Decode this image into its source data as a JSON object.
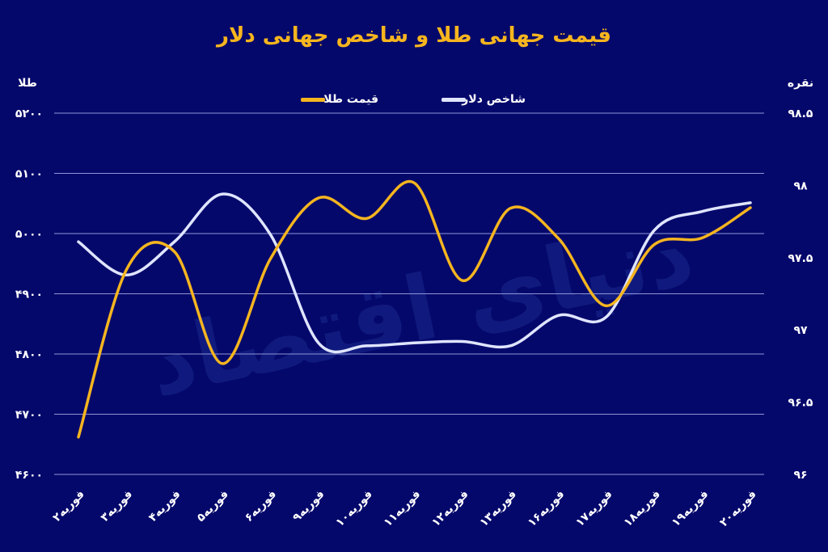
{
  "chart_data": {
    "type": "line",
    "title": "قیمت جهانی طلا و شاخص جهانی دلار",
    "watermark": "دنیای اقتصاد",
    "categories": [
      "۲فوریه",
      "۳فوریه",
      "۴فوریه",
      "۵فوریه",
      "۶فوریه",
      "۹فوریه",
      "۱۰فوریه",
      "۱۱فوریه",
      "۱۲فوریه",
      "۱۳فوریه",
      "۱۶فوریه",
      "۱۷فوریه",
      "۱۸فوریه",
      "۱۹فوریه",
      "۲۰فوریه"
    ],
    "left_axis": {
      "label": "طلا",
      "range": [
        4600,
        5200
      ],
      "ticks": [
        4600,
        4700,
        4800,
        4900,
        5000,
        5100,
        5200
      ],
      "tick_labels": [
        "۴۶۰۰",
        "۴۷۰۰",
        "۴۸۰۰",
        "۴۹۰۰",
        "۵۰۰۰",
        "۵۱۰۰",
        "۵۲۰۰"
      ]
    },
    "right_axis": {
      "label": "نقره",
      "range": [
        96,
        98.5
      ],
      "ticks": [
        96,
        96.5,
        97,
        97.5,
        98,
        98.5
      ],
      "tick_labels": [
        "۹۶",
        "۹۶.۵",
        "۹۷",
        "۹۷.۵",
        "۹۸",
        "۹۸.۵"
      ]
    },
    "grid": true,
    "legend_position": "top",
    "series": [
      {
        "name": "قیمت طلا",
        "axis": "left",
        "color": "#f5b51f",
        "values": [
          4662,
          4940,
          4970,
          4784,
          4958,
          5059,
          5025,
          5084,
          4922,
          5042,
          4992,
          4880,
          4982,
          4993,
          5043
        ]
      },
      {
        "name": "شاخص دلار",
        "axis": "right",
        "color": "#dfe5ff",
        "values": [
          97.61,
          97.38,
          97.61,
          97.94,
          97.66,
          96.91,
          96.89,
          96.91,
          96.92,
          96.89,
          97.1,
          97.09,
          97.69,
          97.82,
          97.88
        ]
      }
    ]
  }
}
